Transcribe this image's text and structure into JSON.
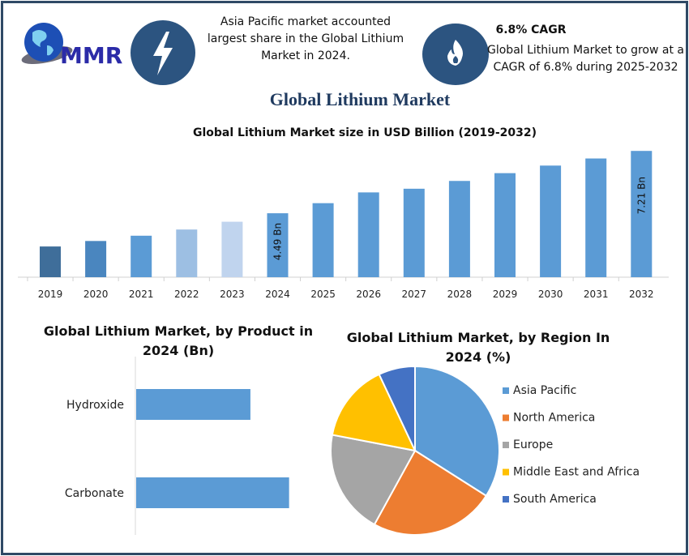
{
  "logo": {
    "text": "MMR"
  },
  "highlight1": {
    "icon": "lightning-icon",
    "text": "Asia Pacific market accounted largest share in the Global Lithium Market in 2024."
  },
  "highlight2": {
    "icon": "flame-icon",
    "heading": "6.8% CAGR",
    "text": "Global Lithium Market to grow at a CAGR of 6.8% during 2025-2032"
  },
  "page_title": "Global Lithium Market",
  "colors": {
    "frame": "#2f4a66",
    "icon_circle": "#2c5480",
    "bar": "#5b9bd5",
    "bar_2019": "#3f6e9a",
    "bar_2020": "#4a86bf",
    "bar_2022": "#9dbfe3",
    "bar_2023": "#c0d4ee"
  },
  "chart_data": [
    {
      "type": "bar",
      "title": "Global Lithium Market size in USD Billion (2019-2032)",
      "categories": [
        "2019",
        "2020",
        "2021",
        "2022",
        "2023",
        "2024",
        "2025",
        "2026",
        "2027",
        "2028",
        "2029",
        "2030",
        "2031",
        "2032"
      ],
      "values": [
        3.04,
        3.28,
        3.51,
        3.78,
        4.12,
        4.49,
        4.93,
        5.4,
        5.56,
        5.9,
        6.24,
        6.57,
        6.88,
        7.21
      ],
      "data_labels": {
        "2024": "4.49 Bn",
        "2032": "7.21 Bn"
      },
      "bar_colors": [
        "#3f6e9a",
        "#4a86bf",
        "#5b9bd5",
        "#9dbfe3",
        "#c0d4ee",
        "#5b9bd5",
        "#5b9bd5",
        "#5b9bd5",
        "#5b9bd5",
        "#5b9bd5",
        "#5b9bd5",
        "#5b9bd5",
        "#5b9bd5",
        "#5b9bd5"
      ],
      "ylim": [
        1.7,
        7.5
      ],
      "grid": false
    },
    {
      "type": "bar",
      "orientation": "horizontal",
      "title": "Global Lithium Market, by Product in 2024 (Bn)",
      "categories": [
        "Hydroxide",
        "Carbonate"
      ],
      "values": [
        1.92,
        2.57
      ],
      "color": "#5b9bd5",
      "grid": false
    },
    {
      "type": "pie",
      "title": "Global Lithium Market, by Region In 2024 (%)",
      "labels": [
        "Asia Pacific",
        "North America",
        "Europe",
        "Middle East and Africa",
        "South America"
      ],
      "values": [
        34,
        24,
        20,
        15,
        7
      ],
      "colors": [
        "#5b9bd5",
        "#ed7d31",
        "#a5a5a5",
        "#ffc000",
        "#4472c4"
      ],
      "legend": "right"
    }
  ]
}
